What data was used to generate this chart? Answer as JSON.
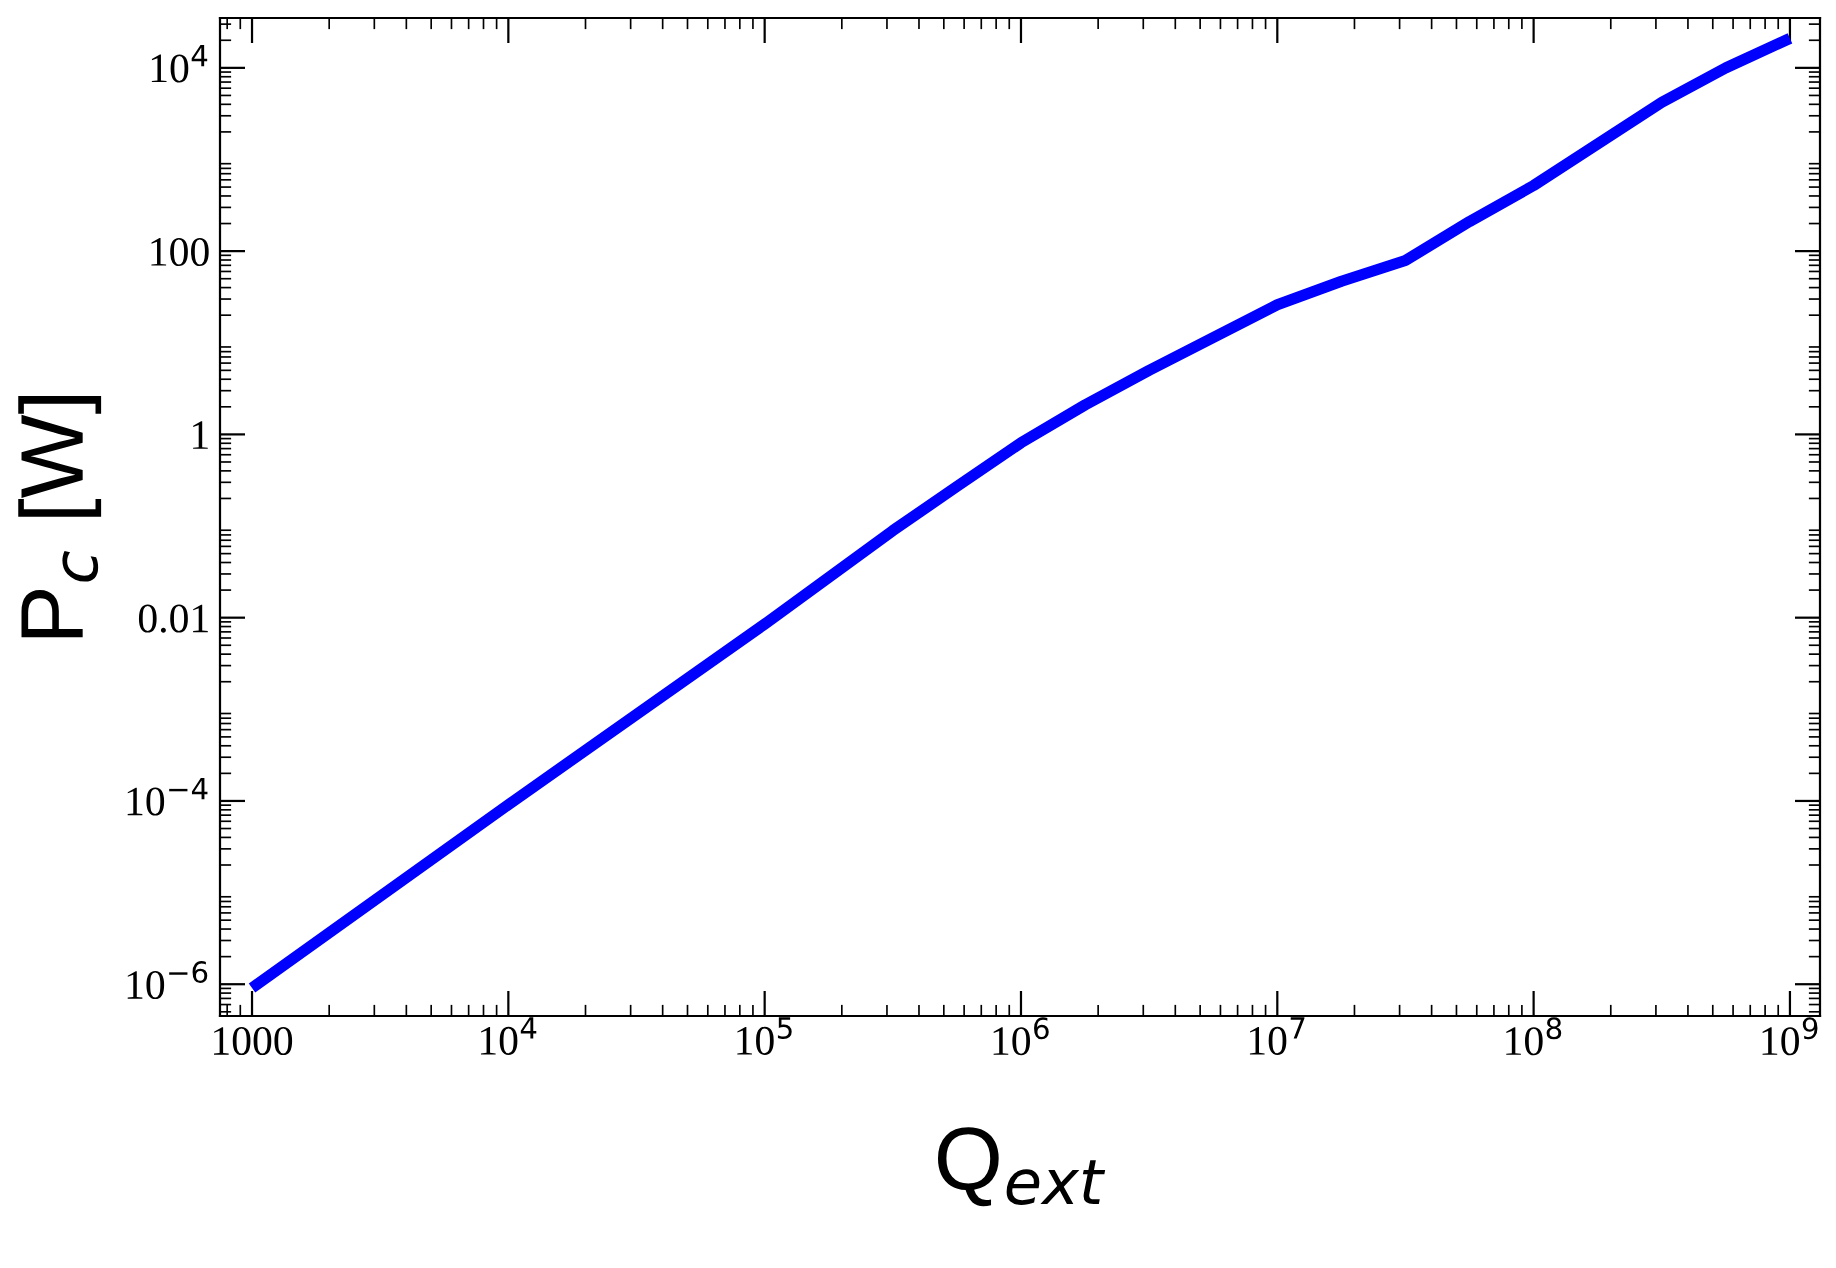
{
  "chart_data": {
    "type": "line",
    "xlabel": "Q$_{ext}$",
    "ylabel": "P$_{c}$ [W]",
    "log": "xy",
    "grid": false,
    "legend": false,
    "marker": "none",
    "line_style": "solid",
    "x": [
      1000,
      10000,
      100000,
      316000,
      562000,
      1000000,
      1780000,
      3160000,
      10000000,
      17800000,
      31600000,
      56200000,
      100000000,
      316000000,
      562000000,
      1000000000
    ],
    "series": [
      {
        "color": "#0000ff",
        "values": [
          9.1e-07,
          9.1e-05,
          0.0085,
          0.089,
          0.27,
          0.81,
          2.1,
          5.0,
          26,
          47,
          79,
          210,
          520,
          4200,
          10000,
          21000
        ]
      }
    ],
    "xlim": [
      750,
      1310000000
    ],
    "ylim": [
      4.5e-07,
      35000
    ],
    "xticks": [
      1000,
      {
        "value": 10000,
        "label": "10$^{4}$"
      },
      {
        "value": 100000,
        "label": "10$^{5}$"
      },
      {
        "value": 1000000,
        "label": "10$^{6}$"
      },
      {
        "value": 10000000,
        "label": "10$^{7}$"
      },
      {
        "value": 100000000,
        "label": "10$^{8}$"
      },
      {
        "value": 1000000000,
        "label": "10$^{9}$"
      }
    ],
    "yticks": [
      {
        "value": 1e-06,
        "label": "10$^{−6}$"
      },
      {
        "value": 0.0001,
        "label": "10$^{−4}$"
      },
      0.01,
      1,
      100,
      {
        "value": 10000,
        "label": "10$^{4}$"
      }
    ]
  }
}
